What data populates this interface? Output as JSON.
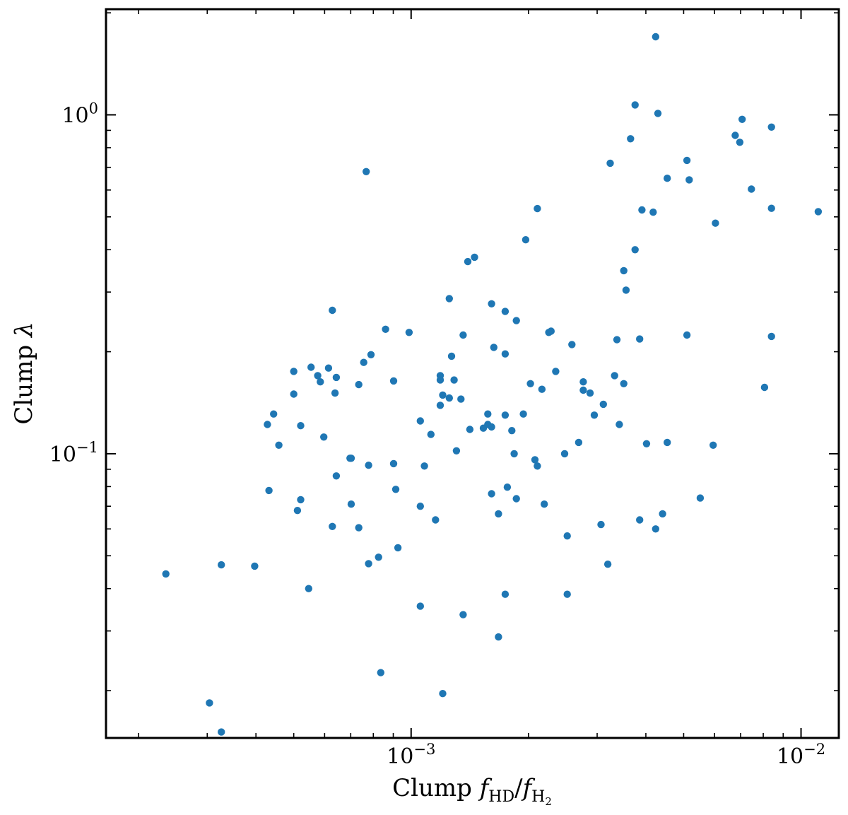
{
  "chart_data": {
    "type": "scatter",
    "xscale": "log",
    "yscale": "log",
    "xlim": [
      0.000165,
      0.0125
    ],
    "ylim": [
      0.0145,
      2.05
    ],
    "grid": false,
    "color": "#1f77b4",
    "xlabel": {
      "prefix": "Clump ",
      "f1": "f",
      "sub1": "HD",
      "slash": "/",
      "f2": "f",
      "sub2_base": "H",
      "sub2_sub": "2"
    },
    "ylabel": {
      "prefix": "Clump ",
      "symbol": "λ"
    },
    "xticks": [
      {
        "value": 0.001,
        "base": "10",
        "exp": "−3"
      },
      {
        "value": 0.01,
        "base": "10",
        "exp": "−2"
      }
    ],
    "yticks": [
      {
        "value": 0.1,
        "base": "10",
        "exp": "−1"
      },
      {
        "value": 1.0,
        "base": "10",
        "exp": "0"
      }
    ],
    "points": [
      [
        0.000235,
        0.0442
      ],
      [
        0.000304,
        0.0184
      ],
      [
        0.000326,
        0.0151
      ],
      [
        0.000326,
        0.047
      ],
      [
        0.000397,
        0.0466
      ],
      [
        0.000428,
        0.122
      ],
      [
        0.000432,
        0.0779
      ],
      [
        0.000444,
        0.131
      ],
      [
        0.000458,
        0.106
      ],
      [
        0.0005,
        0.175
      ],
      [
        0.0005,
        0.15
      ],
      [
        0.000511,
        0.068
      ],
      [
        0.000521,
        0.121
      ],
      [
        0.000521,
        0.0732
      ],
      [
        0.000546,
        0.04
      ],
      [
        0.000554,
        0.18
      ],
      [
        0.000576,
        0.17
      ],
      [
        0.000585,
        0.163
      ],
      [
        0.000597,
        0.112
      ],
      [
        0.000614,
        0.179
      ],
      [
        0.000628,
        0.265
      ],
      [
        0.000628,
        0.061
      ],
      [
        0.000638,
        0.151
      ],
      [
        0.000643,
        0.168
      ],
      [
        0.000643,
        0.086
      ],
      [
        0.000697,
        0.097
      ],
      [
        0.000702,
        0.097
      ],
      [
        0.000702,
        0.071
      ],
      [
        0.000734,
        0.16
      ],
      [
        0.000734,
        0.0605
      ],
      [
        0.000756,
        0.186
      ],
      [
        0.000767,
        0.68
      ],
      [
        0.000778,
        0.0925
      ],
      [
        0.000778,
        0.0474
      ],
      [
        0.000789,
        0.196
      ],
      [
        0.000825,
        0.0495
      ],
      [
        0.000836,
        0.0226
      ],
      [
        0.00086,
        0.233
      ],
      [
        0.000902,
        0.164
      ],
      [
        0.000902,
        0.0935
      ],
      [
        0.000913,
        0.0785
      ],
      [
        0.000925,
        0.0528
      ],
      [
        0.000988,
        0.228
      ],
      [
        0.001056,
        0.125
      ],
      [
        0.001056,
        0.07
      ],
      [
        0.001056,
        0.0355
      ],
      [
        0.001082,
        0.092
      ],
      [
        0.001124,
        0.114
      ],
      [
        0.001155,
        0.0638
      ],
      [
        0.001188,
        0.17
      ],
      [
        0.001188,
        0.165
      ],
      [
        0.001188,
        0.139
      ],
      [
        0.001205,
        0.0196
      ],
      [
        0.001205,
        0.149
      ],
      [
        0.001253,
        0.287
      ],
      [
        0.001253,
        0.146
      ],
      [
        0.00127,
        0.194
      ],
      [
        0.001289,
        0.165
      ],
      [
        0.001307,
        0.102
      ],
      [
        0.001342,
        0.145
      ],
      [
        0.00136,
        0.224
      ],
      [
        0.00136,
        0.0335
      ],
      [
        0.001398,
        0.369
      ],
      [
        0.001415,
        0.118
      ],
      [
        0.001454,
        0.38
      ],
      [
        0.001532,
        0.119
      ],
      [
        0.001573,
        0.131
      ],
      [
        0.001573,
        0.122
      ],
      [
        0.001608,
        0.277
      ],
      [
        0.001608,
        0.12
      ],
      [
        0.001608,
        0.0762
      ],
      [
        0.00163,
        0.206
      ],
      [
        0.001675,
        0.0665
      ],
      [
        0.001675,
        0.0288
      ],
      [
        0.001743,
        0.263
      ],
      [
        0.001743,
        0.197
      ],
      [
        0.001743,
        0.13
      ],
      [
        0.001743,
        0.0385
      ],
      [
        0.001765,
        0.0797
      ],
      [
        0.001813,
        0.117
      ],
      [
        0.001838,
        0.1
      ],
      [
        0.001862,
        0.0737
      ],
      [
        0.001862,
        0.247
      ],
      [
        0.00194,
        0.131
      ],
      [
        0.001967,
        0.428
      ],
      [
        0.002023,
        0.161
      ],
      [
        0.002078,
        0.096
      ],
      [
        0.002107,
        0.529
      ],
      [
        0.002107,
        0.092
      ],
      [
        0.002165,
        0.155
      ],
      [
        0.002195,
        0.071
      ],
      [
        0.002255,
        0.228
      ],
      [
        0.002285,
        0.23
      ],
      [
        0.002349,
        0.175
      ],
      [
        0.002476,
        0.1
      ],
      [
        0.002514,
        0.0572
      ],
      [
        0.002514,
        0.0385
      ],
      [
        0.002584,
        0.21
      ],
      [
        0.00269,
        0.108
      ],
      [
        0.002764,
        0.163
      ],
      [
        0.002764,
        0.154
      ],
      [
        0.002877,
        0.151
      ],
      [
        0.00295,
        0.13
      ],
      [
        0.00307,
        0.0618
      ],
      [
        0.003112,
        0.14
      ],
      [
        0.003195,
        0.0472
      ],
      [
        0.00324,
        0.72
      ],
      [
        0.003326,
        0.17
      ],
      [
        0.003372,
        0.217
      ],
      [
        0.00342,
        0.122
      ],
      [
        0.003511,
        0.161
      ],
      [
        0.003511,
        0.347
      ],
      [
        0.003558,
        0.304
      ],
      [
        0.003655,
        0.85
      ],
      [
        0.003754,
        0.4
      ],
      [
        0.003754,
        1.07
      ],
      [
        0.003856,
        0.218
      ],
      [
        0.003856,
        0.0638
      ],
      [
        0.003908,
        0.524
      ],
      [
        0.004016,
        0.107
      ],
      [
        0.004177,
        0.516
      ],
      [
        0.004238,
        1.7
      ],
      [
        0.004238,
        0.06
      ],
      [
        0.004295,
        1.01
      ],
      [
        0.004415,
        0.0665
      ],
      [
        0.004538,
        0.65
      ],
      [
        0.004538,
        0.108
      ],
      [
        0.005098,
        0.734
      ],
      [
        0.005098,
        0.224
      ],
      [
        0.005167,
        0.643
      ],
      [
        0.005515,
        0.074
      ],
      [
        0.005951,
        0.106
      ],
      [
        0.006033,
        0.479
      ],
      [
        0.006779,
        0.87
      ],
      [
        0.006967,
        0.83
      ],
      [
        0.007063,
        0.97
      ],
      [
        0.007459,
        0.604
      ],
      [
        0.008062,
        0.157
      ],
      [
        0.008397,
        0.92
      ],
      [
        0.008397,
        0.222
      ],
      [
        0.008397,
        0.53
      ],
      [
        0.01107,
        0.518
      ]
    ]
  }
}
